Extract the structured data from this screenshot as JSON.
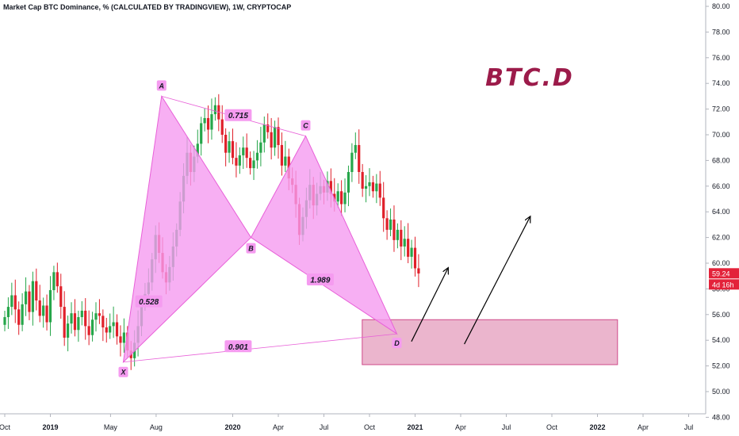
{
  "header": {
    "title": "Market Cap BTC Dominance, % (CALCULATED BY TRADINGVIEW), 1W, CRYPTOCAP"
  },
  "colors": {
    "up": "#26a64a",
    "down": "#e0202a",
    "pattern_fill": "#f59bf0",
    "pattern_line": "#e860d8",
    "zone_fill": "#e8a8c4",
    "zone_border": "#d04a8a",
    "label_bg": "#f59bf0",
    "price_tag": "#e3223a",
    "title": "#9c1b4a"
  },
  "chart_data": {
    "type": "candlestick",
    "title": "BTC.D",
    "ylim": [
      48,
      80
    ],
    "y_ticks": [
      "80.00",
      "78.00",
      "76.00",
      "74.00",
      "72.00",
      "70.00",
      "68.00",
      "66.00",
      "64.00",
      "62.00",
      "60.00",
      "58.00",
      "56.00",
      "54.00",
      "52.00",
      "50.00",
      "48.00"
    ],
    "x_ticks": [
      {
        "label": "Oct",
        "t": 0.0,
        "bold": false
      },
      {
        "label": "2019",
        "t": 0.25,
        "bold": true
      },
      {
        "label": "May",
        "t": 0.58,
        "bold": false
      },
      {
        "label": "Aug",
        "t": 0.83,
        "bold": false
      },
      {
        "label": "2020",
        "t": 1.25,
        "bold": true
      },
      {
        "label": "Apr",
        "t": 1.5,
        "bold": false
      },
      {
        "label": "Jul",
        "t": 1.75,
        "bold": false
      },
      {
        "label": "Oct",
        "t": 2.0,
        "bold": false
      },
      {
        "label": "2021",
        "t": 2.25,
        "bold": true
      },
      {
        "label": "Apr",
        "t": 2.5,
        "bold": false
      },
      {
        "label": "Jul",
        "t": 2.75,
        "bold": false
      },
      {
        "label": "Oct",
        "t": 3.0,
        "bold": false
      },
      {
        "label": "2022",
        "t": 3.25,
        "bold": true
      },
      {
        "label": "Apr",
        "t": 3.5,
        "bold": false
      },
      {
        "label": "Jul",
        "t": 3.75,
        "bold": false
      }
    ],
    "close_series": [
      55.8,
      56.6,
      57.5,
      56.4,
      55.2,
      56.8,
      57.8,
      56.2,
      58.6,
      57.1,
      55.9,
      56.7,
      55.4,
      57.9,
      59.3,
      58.2,
      56.6,
      54.2,
      55.3,
      56.1,
      54.8,
      55.8,
      56.3,
      55.1,
      54.4,
      55.6,
      56.1,
      55.9,
      55.0,
      54.6,
      55.1,
      55.4,
      54.3,
      53.8,
      54.6,
      53.2,
      52.6,
      53.8,
      55.1,
      56.8,
      57.6,
      58.5,
      60.3,
      62.2,
      60.8,
      59.3,
      58.5,
      59.7,
      61.3,
      62.6,
      64.8,
      66.8,
      68.6,
      67.1,
      68.3,
      69.3,
      70.9,
      71.3,
      70.4,
      71.6,
      72.3,
      71.2,
      70.0,
      68.6,
      69.5,
      68.2,
      67.6,
      68.4,
      69.0,
      68.2,
      67.4,
      68.0,
      68.6,
      69.4,
      70.8,
      70.2,
      69.0,
      70.6,
      69.2,
      67.6,
      68.3,
      66.6,
      66.1,
      64.6,
      62.2,
      63.6,
      64.9,
      66.1,
      64.5,
      65.4,
      66.0,
      65.5,
      66.4,
      65.4,
      64.8,
      65.6,
      64.6,
      65.5,
      67.1,
      68.6,
      69.2,
      67.1,
      65.8,
      66.0,
      66.3,
      65.6,
      66.2,
      65.1,
      63.5,
      62.6,
      63.4,
      61.8,
      62.6,
      61.3,
      61.9,
      60.5,
      61.2,
      59.6,
      59.2
    ],
    "current_price": "59.24",
    "countdown": "4d 16h",
    "pattern": {
      "points": [
        {
          "name": "X",
          "t": 0.65,
          "y": 52.3
        },
        {
          "name": "A",
          "t": 0.86,
          "y": 73.0
        },
        {
          "name": "B",
          "t": 1.35,
          "y": 62.0
        },
        {
          "name": "C",
          "t": 1.65,
          "y": 69.9
        },
        {
          "name": "D",
          "t": 2.15,
          "y": 54.5
        }
      ],
      "ratios": [
        {
          "label": "0.528",
          "t": 0.79,
          "y": 57.0
        },
        {
          "label": "0.715",
          "t": 1.28,
          "y": 71.5
        },
        {
          "label": "1.989",
          "t": 1.73,
          "y": 58.7
        },
        {
          "label": "0.901",
          "t": 1.28,
          "y": 53.5
        }
      ]
    },
    "target_zone": {
      "t_start": 1.96,
      "t_end": 3.36,
      "y_low": 52.1,
      "y_high": 55.6
    },
    "arrows": [
      {
        "t1": 2.23,
        "y1": 53.9,
        "t2": 2.43,
        "y2": 59.6
      },
      {
        "t1": 2.52,
        "y1": 53.7,
        "t2": 2.88,
        "y2": 63.6
      }
    ]
  }
}
